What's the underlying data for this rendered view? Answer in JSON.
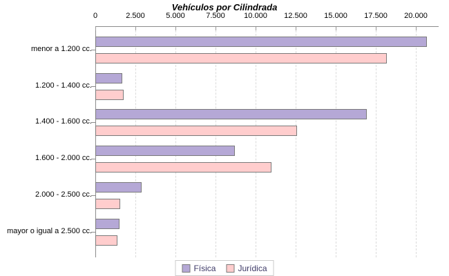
{
  "chart_data": {
    "type": "bar",
    "orientation": "horizontal",
    "title": "Vehículos por Cilindrada",
    "categories": [
      "menor a 1.200 cc.",
      "1.200 - 1.400 cc.",
      "1.400 - 1.600 cc.",
      "1.600 - 2.000 cc.",
      "2.000 - 2.500 cc.",
      "mayor o igual a 2.500 cc."
    ],
    "series": [
      {
        "name": "Física",
        "color": "#b5a8d6",
        "values": [
          20700,
          1700,
          16950,
          8700,
          2900,
          1500
        ]
      },
      {
        "name": "Jurídica",
        "color": "#ffcdcd",
        "values": [
          18200,
          1750,
          12600,
          11000,
          1550,
          1400
        ]
      }
    ],
    "x_axis": {
      "position": "top",
      "tick_labels": [
        "0",
        "2.500",
        "5.000",
        "7.500",
        "10.000",
        "12.500",
        "15.000",
        "17.500",
        "20.000"
      ],
      "tick_values": [
        0,
        2500,
        5000,
        7500,
        10000,
        12500,
        15000,
        17500,
        20000
      ],
      "xlim": [
        0,
        21400
      ],
      "grid": "vertical-dashed"
    },
    "legend": {
      "position": "bottom",
      "entries": [
        "Física",
        "Jurídica"
      ]
    }
  },
  "colors": {
    "fisica_fill": "#b5a8d6",
    "juridica_fill": "#ffcdcd",
    "bar_border": "#7a7a7a",
    "axis_line": "#8a8a8a",
    "gridline": "#dadada",
    "legend_text": "#3c3866",
    "title_text": "#000000",
    "background": "#ffffff"
  }
}
